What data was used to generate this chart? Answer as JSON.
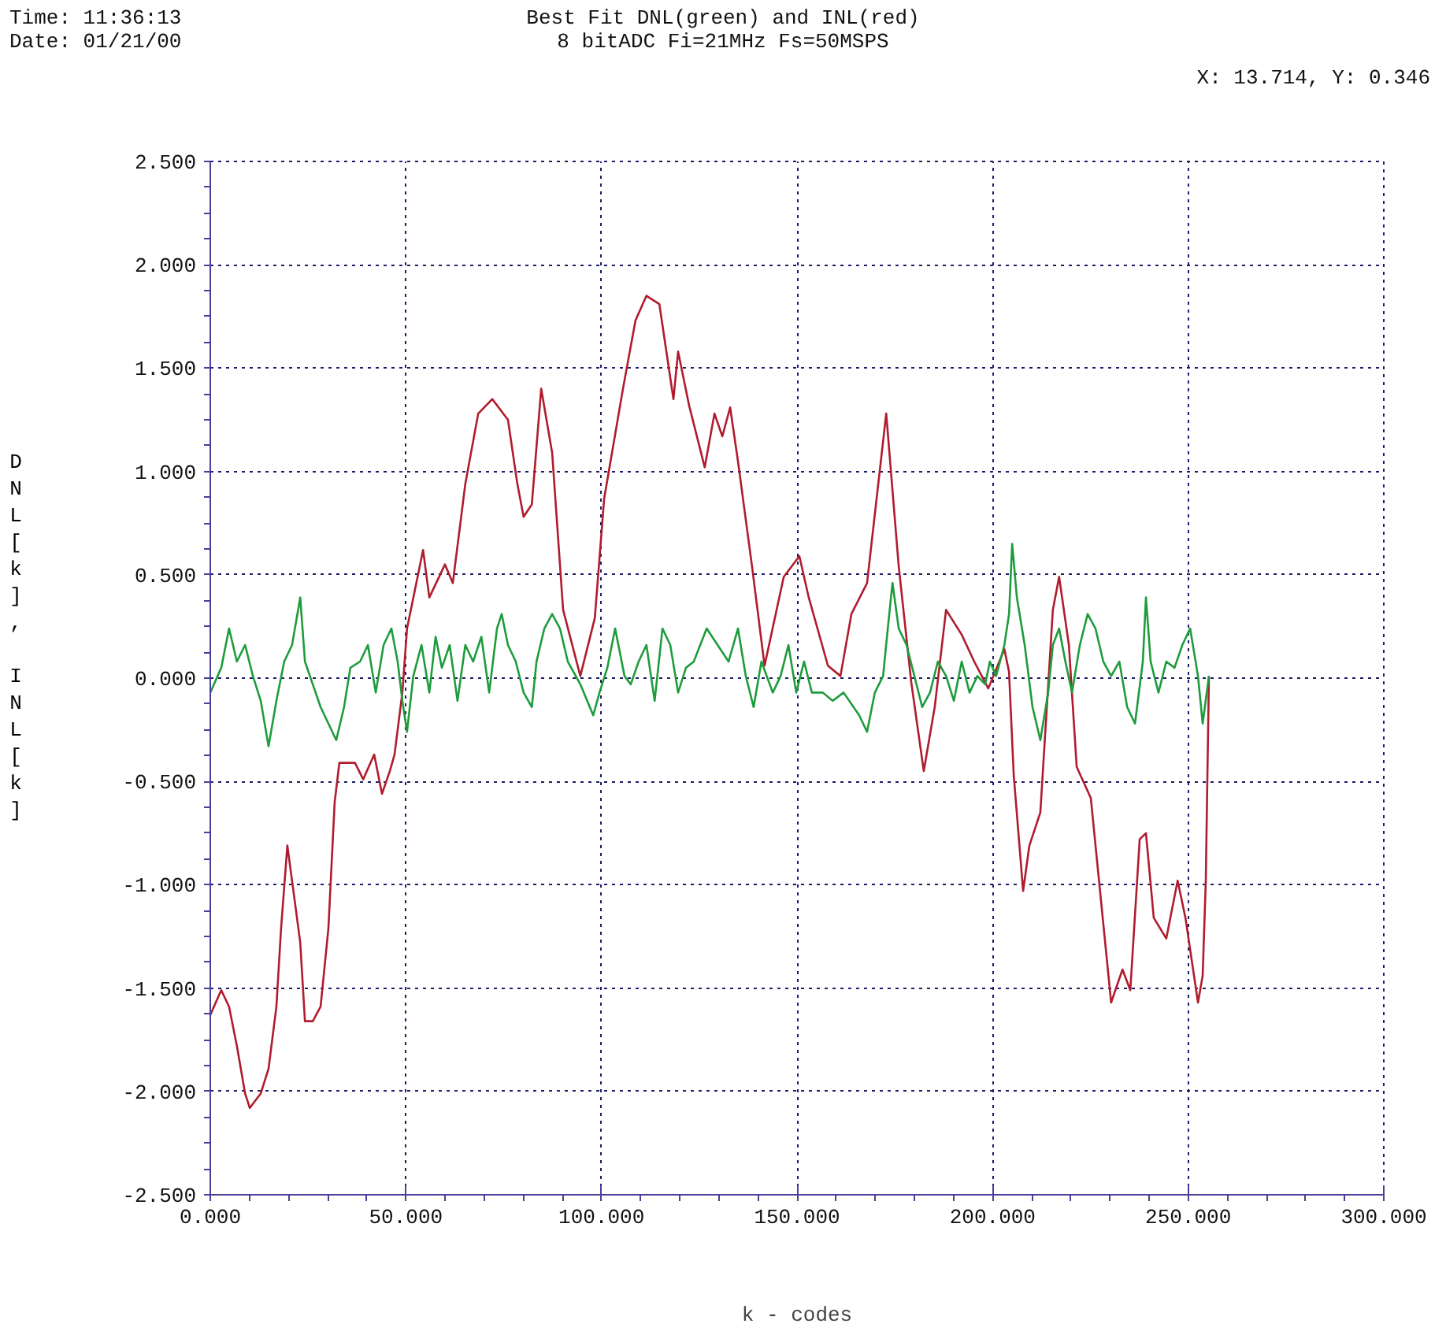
{
  "chart_data": {
    "type": "line",
    "title": "Best Fit DNL(green) and INL(red)",
    "subtitle": "8 bitADC Fi=21MHz Fs=50MSPS",
    "xlabel": "k - codes",
    "ylabel": "DNL[k], INL[k]",
    "annotations": [
      "Time: 11:36:13",
      "Date: 01/21/00",
      "X: 13.714, Y:  0.346"
    ],
    "xlim": [
      0,
      300
    ],
    "ylim": [
      -2.5,
      2.5
    ],
    "xticks": [
      {
        "value": 0,
        "label": "0.000"
      },
      {
        "value": 50,
        "label": "50.000"
      },
      {
        "value": 100,
        "label": "100.000"
      },
      {
        "value": 150,
        "label": "150.000"
      },
      {
        "value": 200,
        "label": "200.000"
      },
      {
        "value": 250,
        "label": "250.000"
      },
      {
        "value": 300,
        "label": "300.000"
      }
    ],
    "yticks": [
      {
        "value": -2.5,
        "label": "-2.500"
      },
      {
        "value": -2,
        "label": "-2.000"
      },
      {
        "value": -1.5,
        "label": "-1.500"
      },
      {
        "value": -1,
        "label": "-1.000"
      },
      {
        "value": -0.5,
        "label": "-0.500"
      },
      {
        "value": 0,
        "label": "0.000"
      },
      {
        "value": 0.5,
        "label": "0.500"
      },
      {
        "value": 1,
        "label": "1.000"
      },
      {
        "value": 1.5,
        "label": "1.500"
      },
      {
        "value": 2,
        "label": "2.000"
      },
      {
        "value": 2.5,
        "label": "2.500"
      }
    ],
    "grid": true,
    "marker": "none",
    "line_style": "solid",
    "series": [
      {
        "color": "#b01c2e",
        "x": [
          0,
          2.8,
          4.8,
          6.8,
          8.9,
          10.1,
          11.7,
          12.9,
          14.9,
          16.9,
          18.1,
          19.7,
          20.9,
          23.0,
          24.2,
          26.2,
          28.2,
          30.2,
          31.8,
          33.0,
          37.0,
          39.1,
          41.9,
          43.9,
          45.9,
          47.1,
          49.1,
          50.3,
          54.4,
          56.0,
          60.0,
          62.0,
          65.2,
          68.5,
          72.1,
          76.1,
          78.5,
          80.1,
          82.2,
          84.6,
          87.4,
          90.2,
          94.6,
          98.3,
          100.7,
          105.5,
          108.7,
          111.5,
          114.8,
          118.4,
          119.6,
          122.4,
          126.4,
          128.9,
          130.9,
          132.9,
          134.9,
          138.5,
          141.7,
          146.6,
          150.6,
          153.0,
          157.9,
          161.1,
          163.9,
          167.9,
          172.8,
          176.0,
          179.2,
          182.4,
          185.2,
          188.1,
          192.1,
          195.3,
          198.9,
          203.0,
          204.2,
          205.4,
          207.8,
          209.4,
          212.2,
          215.4,
          217.0,
          219.5,
          221.5,
          225.1,
          230.3,
          233.2,
          235.2,
          237.6,
          239.2,
          241.2,
          244.4,
          247.3,
          249.3,
          252.5,
          253.7,
          254.5,
          255.3
        ],
        "values": [
          -1.63,
          -1.51,
          -1.59,
          -1.78,
          -2.01,
          -2.08,
          -2.04,
          -2.01,
          -1.89,
          -1.59,
          -1.21,
          -0.81,
          -0.98,
          -1.28,
          -1.66,
          -1.66,
          -1.59,
          -1.21,
          -0.6,
          -0.41,
          -0.41,
          -0.49,
          -0.37,
          -0.56,
          -0.45,
          -0.37,
          -0.07,
          0.24,
          0.62,
          0.39,
          0.55,
          0.46,
          0.94,
          1.28,
          1.35,
          1.25,
          0.94,
          0.78,
          0.84,
          1.4,
          1.09,
          0.33,
          0.01,
          0.29,
          0.87,
          1.4,
          1.73,
          1.85,
          1.81,
          1.35,
          1.58,
          1.32,
          1.02,
          1.28,
          1.17,
          1.31,
          1.05,
          0.54,
          0.06,
          0.49,
          0.59,
          0.39,
          0.06,
          0.01,
          0.31,
          0.46,
          1.28,
          0.54,
          -0.02,
          -0.45,
          -0.14,
          0.33,
          0.21,
          0.08,
          -0.05,
          0.14,
          0.03,
          -0.47,
          -1.03,
          -0.81,
          -0.65,
          0.33,
          0.49,
          0.16,
          -0.43,
          -0.58,
          -1.57,
          -1.41,
          -1.51,
          -0.78,
          -0.75,
          -1.16,
          -1.26,
          -0.98,
          -1.16,
          -1.57,
          -1.44,
          -0.98,
          0.01
        ]
      },
      {
        "color": "#1e9c3c",
        "x": [
          0,
          2.8,
          4.8,
          6.8,
          8.9,
          10.9,
          12.9,
          14.9,
          16.9,
          18.9,
          20.9,
          23.0,
          24.2,
          26.2,
          28.2,
          30.2,
          32.2,
          34.2,
          35.8,
          38.3,
          40.3,
          42.3,
          44.3,
          46.3,
          47.9,
          49.1,
          50.3,
          51.9,
          54.0,
          56.0,
          57.6,
          59.2,
          61.2,
          63.2,
          65.2,
          67.2,
          69.3,
          71.3,
          73.3,
          74.5,
          76.1,
          78.1,
          80.1,
          82.2,
          83.4,
          85.4,
          87.4,
          89.4,
          91.4,
          94.6,
          97.9,
          99.5,
          101.5,
          103.5,
          105.9,
          107.5,
          109.5,
          111.5,
          113.6,
          115.6,
          117.6,
          119.6,
          121.6,
          123.6,
          126.9,
          129.7,
          132.5,
          134.9,
          136.9,
          138.9,
          140.9,
          143.8,
          145.8,
          147.8,
          149.8,
          151.8,
          153.8,
          156.6,
          159.1,
          161.9,
          165.9,
          167.9,
          169.9,
          172.0,
          173.2,
          174.4,
          176.0,
          178.0,
          180.0,
          182.0,
          184.0,
          186.0,
          188.1,
          190.1,
          192.1,
          194.1,
          196.1,
          198.1,
          199.3,
          200.9,
          203.0,
          204.2,
          205.0,
          206.2,
          208.2,
          210.2,
          212.2,
          214.2,
          215.4,
          217.0,
          218.6,
          220.3,
          222.3,
          224.3,
          226.3,
          228.3,
          230.3,
          232.4,
          234.4,
          236.4,
          238.4,
          239.2,
          240.4,
          242.4,
          244.4,
          246.5,
          248.5,
          250.5,
          252.5,
          253.7,
          255.3
        ],
        "values": [
          -0.07,
          0.05,
          0.24,
          0.08,
          0.16,
          0.01,
          -0.11,
          -0.33,
          -0.11,
          0.08,
          0.16,
          0.39,
          0.08,
          -0.03,
          -0.14,
          -0.22,
          -0.3,
          -0.14,
          0.05,
          0.08,
          0.16,
          -0.07,
          0.16,
          0.24,
          0.08,
          -0.11,
          -0.26,
          0.01,
          0.16,
          -0.07,
          0.2,
          0.05,
          0.16,
          -0.11,
          0.16,
          0.08,
          0.2,
          -0.07,
          0.24,
          0.31,
          0.16,
          0.08,
          -0.07,
          -0.14,
          0.08,
          0.24,
          0.31,
          0.24,
          0.08,
          -0.03,
          -0.18,
          -0.07,
          0.05,
          0.24,
          0.01,
          -0.03,
          0.08,
          0.16,
          -0.11,
          0.24,
          0.16,
          -0.07,
          0.05,
          0.08,
          0.24,
          0.16,
          0.08,
          0.24,
          0.01,
          -0.14,
          0.08,
          -0.07,
          0.01,
          0.16,
          -0.07,
          0.08,
          -0.07,
          -0.07,
          -0.11,
          -0.07,
          -0.18,
          -0.26,
          -0.07,
          0.01,
          0.24,
          0.46,
          0.24,
          0.16,
          0.01,
          -0.14,
          -0.07,
          0.08,
          0.01,
          -0.11,
          0.08,
          -0.07,
          0.01,
          -0.03,
          0.08,
          0.01,
          0.16,
          0.31,
          0.65,
          0.39,
          0.16,
          -0.14,
          -0.3,
          -0.07,
          0.16,
          0.24,
          0.08,
          -0.07,
          0.16,
          0.31,
          0.24,
          0.08,
          0.01,
          0.08,
          -0.14,
          -0.22,
          0.08,
          0.39,
          0.08,
          -0.07,
          0.08,
          0.05,
          0.16,
          0.24,
          0.01,
          -0.22,
          0.01
        ]
      }
    ]
  }
}
